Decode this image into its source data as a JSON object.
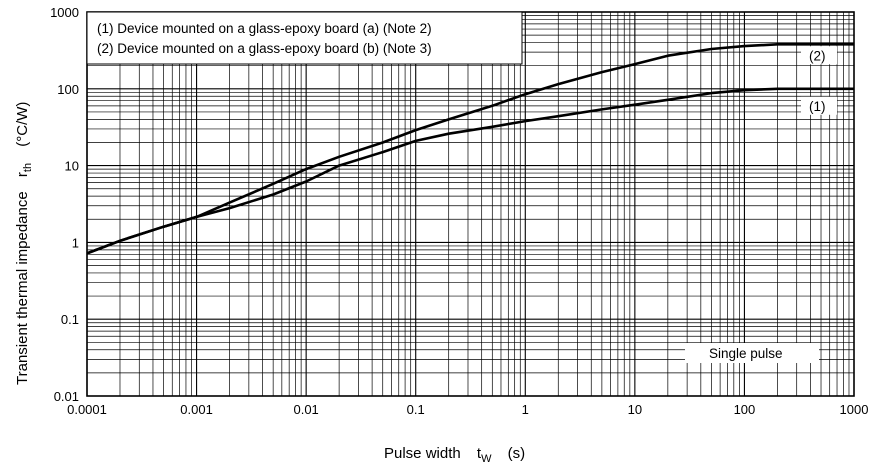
{
  "chart_data": {
    "type": "line",
    "x_scale": "log",
    "y_scale": "log",
    "xlim": [
      0.0001,
      1000
    ],
    "ylim": [
      0.01,
      1000
    ],
    "grid": true,
    "xticks": [
      "0.0001",
      "0.001",
      "0.01",
      "0.1",
      "1",
      "10",
      "100",
      "1000"
    ],
    "yticks": [
      "0.01",
      "0.1",
      "1",
      "10",
      "100",
      "1000"
    ],
    "xlabel": {
      "main": "Pulse width",
      "symbol": "t",
      "sub": "W",
      "unit": "(s)"
    },
    "ylabel": {
      "main": "Transient thermal impedance",
      "symbol": "r",
      "sub": "th",
      "unit": "(°C/W)"
    },
    "legend": [
      "(1) Device mounted on a glass-epoxy board (a) (Note 2)",
      "(2) Device mounted on a glass-epoxy board (b) (Note 3)"
    ],
    "legend_position": "top-left",
    "annotation": "Single pulse",
    "series": [
      {
        "name": "(1)",
        "points": [
          [
            0.0001,
            0.72
          ],
          [
            0.0002,
            1.05
          ],
          [
            0.0005,
            1.6
          ],
          [
            0.001,
            2.15
          ],
          [
            0.002,
            2.8
          ],
          [
            0.005,
            4.2
          ],
          [
            0.01,
            6.2
          ],
          [
            0.02,
            10
          ],
          [
            0.05,
            15
          ],
          [
            0.1,
            21
          ],
          [
            0.2,
            26
          ],
          [
            0.5,
            32
          ],
          [
            1,
            38
          ],
          [
            2,
            44
          ],
          [
            5,
            54
          ],
          [
            10,
            62
          ],
          [
            20,
            72
          ],
          [
            50,
            88
          ],
          [
            100,
            96
          ],
          [
            200,
            100
          ],
          [
            1000,
            100
          ]
        ]
      },
      {
        "name": "(2)",
        "points": [
          [
            0.0001,
            0.72
          ],
          [
            0.0002,
            1.05
          ],
          [
            0.0005,
            1.6
          ],
          [
            0.001,
            2.15
          ],
          [
            0.002,
            3.3
          ],
          [
            0.005,
            5.8
          ],
          [
            0.01,
            9
          ],
          [
            0.02,
            13
          ],
          [
            0.05,
            20
          ],
          [
            0.1,
            29
          ],
          [
            0.2,
            40
          ],
          [
            0.5,
            60
          ],
          [
            1,
            85
          ],
          [
            2,
            115
          ],
          [
            5,
            165
          ],
          [
            10,
            210
          ],
          [
            20,
            270
          ],
          [
            50,
            330
          ],
          [
            100,
            360
          ],
          [
            200,
            380
          ],
          [
            1000,
            380
          ]
        ]
      }
    ]
  },
  "colors": {
    "line": "#000000",
    "grid": "#000000",
    "background": "#ffffff"
  }
}
